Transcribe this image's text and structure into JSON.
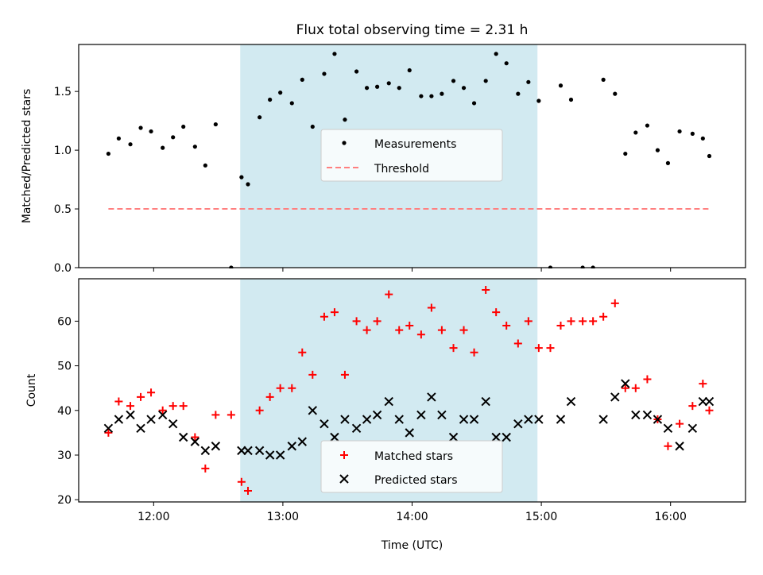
{
  "title": "Flux total observing time = 2.31 h",
  "colors": {
    "shade": "#add8e6",
    "measurement": "#000000",
    "threshold": "#ff7f7f",
    "matched": "#ff0000",
    "predicted": "#000000"
  },
  "chart_data": [
    {
      "type": "scatter",
      "ylabel": "Matched/Predicted stars",
      "xlim_hours": [
        11.42,
        16.58
      ],
      "ylim": [
        0,
        1.9
      ],
      "yticks": [
        0.0,
        0.5,
        1.0,
        1.5
      ],
      "yticklabels": [
        "0.0",
        "0.5",
        "1.0",
        "1.5"
      ],
      "shaded_span_hours": [
        12.67,
        14.97
      ],
      "legend": {
        "placement": "center",
        "entries": [
          "Measurements",
          "Threshold"
        ]
      },
      "threshold": {
        "name": "Threshold",
        "y": 0.5,
        "x_hours": [
          11.65,
          16.3
        ]
      },
      "series": [
        {
          "name": "Measurements",
          "x_hours": [
            11.65,
            11.73,
            11.82,
            11.9,
            11.98,
            12.07,
            12.15,
            12.23,
            12.32,
            12.4,
            12.48,
            12.6,
            12.68,
            12.73,
            12.82,
            12.9,
            12.98,
            13.07,
            13.15,
            13.23,
            13.32,
            13.4,
            13.48,
            13.57,
            13.65,
            13.73,
            13.82,
            13.9,
            13.98,
            14.07,
            14.15,
            14.23,
            14.32,
            14.4,
            14.48,
            14.57,
            14.65,
            14.73,
            14.82,
            14.9,
            14.98,
            15.07,
            15.15,
            15.23,
            15.32,
            15.4,
            15.48,
            15.57,
            15.65,
            15.73,
            15.82,
            15.9,
            15.98,
            16.07,
            16.17,
            16.25,
            16.3
          ],
          "y": [
            0.97,
            1.1,
            1.05,
            1.19,
            1.16,
            1.02,
            1.11,
            1.2,
            1.03,
            0.87,
            1.22,
            0.0,
            0.77,
            0.71,
            1.28,
            1.43,
            1.49,
            1.4,
            1.6,
            1.2,
            1.65,
            1.82,
            1.26,
            1.67,
            1.53,
            1.54,
            1.57,
            1.53,
            1.68,
            1.46,
            1.46,
            1.48,
            1.59,
            1.53,
            1.4,
            1.59,
            1.82,
            1.74,
            1.48,
            1.58,
            1.42,
            0.0,
            1.55,
            1.43,
            0.0,
            0.0,
            1.6,
            1.48,
            0.97,
            1.15,
            1.21,
            1.0,
            0.89,
            1.16,
            1.14,
            1.1,
            0.95
          ]
        }
      ]
    },
    {
      "type": "scatter",
      "ylabel": "Count",
      "xlabel": "Time (UTC)",
      "xlim_hours": [
        11.42,
        16.58
      ],
      "ylim": [
        19.5,
        69.5
      ],
      "yticks": [
        20,
        30,
        40,
        50,
        60
      ],
      "yticklabels": [
        "20",
        "30",
        "40",
        "50",
        "60"
      ],
      "xticks_hours": [
        12,
        13,
        14,
        15,
        16
      ],
      "xticklabels": [
        "12:00",
        "13:00",
        "14:00",
        "15:00",
        "16:00"
      ],
      "shaded_span_hours": [
        12.67,
        14.97
      ],
      "legend": {
        "placement": "lower center",
        "entries": [
          "Matched stars",
          "Predicted stars"
        ]
      },
      "series": [
        {
          "name": "Matched stars",
          "marker": "+",
          "x_hours": [
            11.65,
            11.73,
            11.82,
            11.9,
            11.98,
            12.07,
            12.15,
            12.23,
            12.32,
            12.4,
            12.48,
            12.6,
            12.68,
            12.73,
            12.82,
            12.9,
            12.98,
            13.07,
            13.15,
            13.23,
            13.32,
            13.4,
            13.48,
            13.57,
            13.65,
            13.73,
            13.82,
            13.9,
            13.98,
            14.07,
            14.15,
            14.23,
            14.32,
            14.4,
            14.48,
            14.57,
            14.65,
            14.73,
            14.82,
            14.9,
            14.98,
            15.07,
            15.15,
            15.23,
            15.32,
            15.4,
            15.48,
            15.57,
            15.65,
            15.73,
            15.82,
            15.9,
            15.98,
            16.07,
            16.17,
            16.25,
            16.3
          ],
          "y": [
            35,
            42,
            41,
            43,
            44,
            40,
            41,
            41,
            34,
            27,
            39,
            39,
            24,
            22,
            40,
            43,
            45,
            45,
            53,
            48,
            61,
            62,
            48,
            60,
            58,
            60,
            66,
            58,
            59,
            57,
            63,
            58,
            54,
            58,
            53,
            67,
            62,
            59,
            55,
            60,
            54,
            54,
            59,
            60,
            60,
            60,
            61,
            64,
            45,
            45,
            47,
            38,
            32,
            37,
            41,
            46,
            40
          ]
        },
        {
          "name": "Predicted stars",
          "marker": "x",
          "x_hours": [
            11.65,
            11.73,
            11.82,
            11.9,
            11.98,
            12.07,
            12.15,
            12.23,
            12.32,
            12.4,
            12.48,
            12.68,
            12.73,
            12.82,
            12.9,
            12.98,
            13.07,
            13.15,
            13.23,
            13.32,
            13.4,
            13.48,
            13.57,
            13.65,
            13.73,
            13.82,
            13.9,
            13.98,
            14.07,
            14.15,
            14.23,
            14.32,
            14.4,
            14.48,
            14.57,
            14.65,
            14.73,
            14.82,
            14.9,
            14.98,
            15.15,
            15.23,
            15.48,
            15.57,
            15.65,
            15.73,
            15.82,
            15.9,
            15.98,
            16.07,
            16.17,
            16.25,
            16.3
          ],
          "y": [
            36,
            38,
            39,
            36,
            38,
            39,
            37,
            34,
            33,
            31,
            32,
            31,
            31,
            31,
            30,
            30,
            32,
            33,
            40,
            37,
            34,
            38,
            36,
            38,
            39,
            42,
            38,
            35,
            39,
            43,
            39,
            34,
            38,
            38,
            42,
            34,
            34,
            37,
            38,
            38,
            38,
            42,
            38,
            43,
            46,
            39,
            39,
            38,
            36,
            32,
            36,
            42,
            42
          ]
        }
      ]
    }
  ]
}
